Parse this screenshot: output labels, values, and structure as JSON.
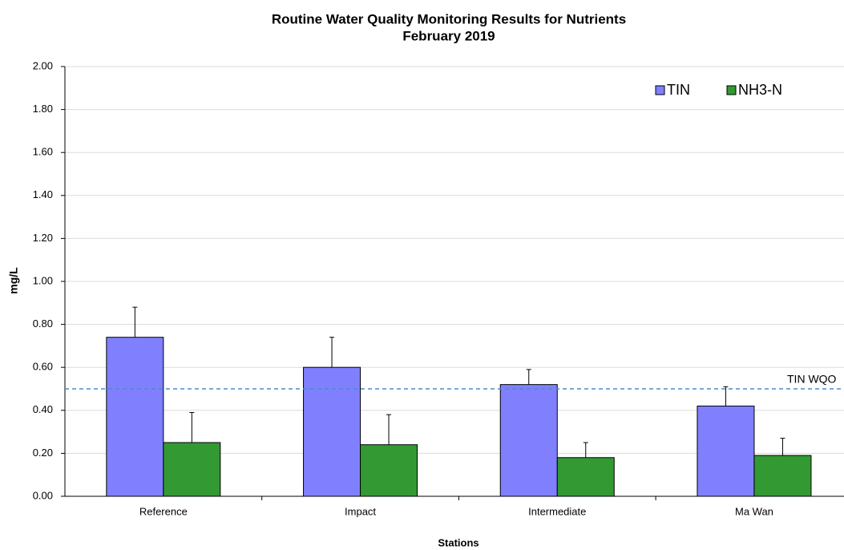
{
  "chart_data": {
    "type": "bar",
    "title": "Routine Water Quality Monitoring Results for Nutrients",
    "subtitle": "February 2019",
    "x_label": "Stations",
    "y_label": "mg/L",
    "categories": [
      "Reference",
      "Impact",
      "Intermediate",
      "Ma Wan"
    ],
    "series": [
      {
        "name": "TIN",
        "color": "#8080ff",
        "values": [
          0.74,
          0.6,
          0.52,
          0.42
        ],
        "errors": [
          0.14,
          0.14,
          0.07,
          0.09
        ]
      },
      {
        "name": "NH3-N",
        "color": "#339933",
        "values": [
          0.25,
          0.24,
          0.18,
          0.19
        ],
        "errors": [
          0.14,
          0.14,
          0.07,
          0.08
        ]
      }
    ],
    "reference_lines": [
      {
        "value": 0.5,
        "label": "TIN WQO",
        "color": "#4a8cc8"
      }
    ],
    "ylim": [
      0,
      2
    ],
    "yticks": [
      {
        "value": 0,
        "label": "0.00"
      },
      {
        "value": 0.2,
        "label": "0.20"
      },
      {
        "value": 0.4,
        "label": "0.40"
      },
      {
        "value": 0.6,
        "label": "0.60"
      },
      {
        "value": 0.8,
        "label": "0.80"
      },
      {
        "value": 1.0,
        "label": "1.00"
      },
      {
        "value": 1.2,
        "label": "1.20"
      },
      {
        "value": 1.4,
        "label": "1.40"
      },
      {
        "value": 1.6,
        "label": "1.60"
      },
      {
        "value": 1.8,
        "label": "1.80"
      },
      {
        "value": 2.0,
        "label": "2.00"
      }
    ],
    "grid": true,
    "legend": "top-right"
  }
}
